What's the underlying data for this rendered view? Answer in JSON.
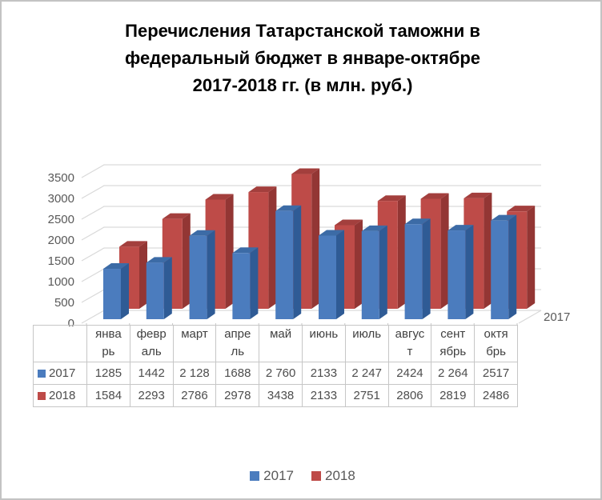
{
  "title_lines": [
    "Перечисления Татарстанской таможни в",
    "федеральный бюджет в январе-октябре",
    "2017-2018 гг. (в млн. руб.)"
  ],
  "chart_data": {
    "type": "bar",
    "style": "3d-clustered-column",
    "title": "Перечисления Татарстанской таможни в федеральный бюджет в январе-октябре 2017-2018 гг. (в млн. руб.)",
    "categories": [
      "январь",
      "февраль",
      "март",
      "апрель",
      "май",
      "июнь",
      "июль",
      "август",
      "сентябрь",
      "октябрь"
    ],
    "category_display_labels": [
      "янва\nрь",
      "февр\nаль",
      "март",
      "апре\nль",
      "май",
      "июнь",
      "июль",
      "авгус\nт",
      "сент\nябрь",
      "октя\nбрь"
    ],
    "series": [
      {
        "name": "2017",
        "values": [
          1285,
          1442,
          2128,
          1688,
          2760,
          2133,
          2247,
          2424,
          2264,
          2517
        ],
        "display_values": [
          "1285",
          "1442",
          "2 128",
          "1688",
          "2 760",
          "2133",
          "2 247",
          "2424",
          "2 264",
          "2517"
        ],
        "color_front": "#4b7cbe",
        "color_top": "#3c6ba6",
        "color_side": "#2f5b95"
      },
      {
        "name": "2018",
        "values": [
          1584,
          2293,
          2786,
          2978,
          3438,
          2133,
          2751,
          2806,
          2819,
          2486
        ],
        "display_values": [
          "1584",
          "2293",
          "2786",
          "2978",
          "3438",
          "2133",
          "2751",
          "2806",
          "2819",
          "2486"
        ],
        "color_front": "#be4b48",
        "color_top": "#a33f3d",
        "color_side": "#933634"
      }
    ],
    "ylim": [
      0,
      3500
    ],
    "ytick_step": 500,
    "ytick_labels": [
      "0",
      "500",
      "1000",
      "1500",
      "2000",
      "2500",
      "3000",
      "3500"
    ],
    "depth_axis_label": "2017",
    "grid": true,
    "legend_position": "bottom",
    "legend": [
      "2017",
      "2018"
    ],
    "data_table_shown": true
  },
  "colors": {
    "grid": "#d9d9d9",
    "axis_text": "#595959",
    "category_text": "#404040",
    "table_border": "#c6c6c6",
    "title_text": "#000000"
  }
}
